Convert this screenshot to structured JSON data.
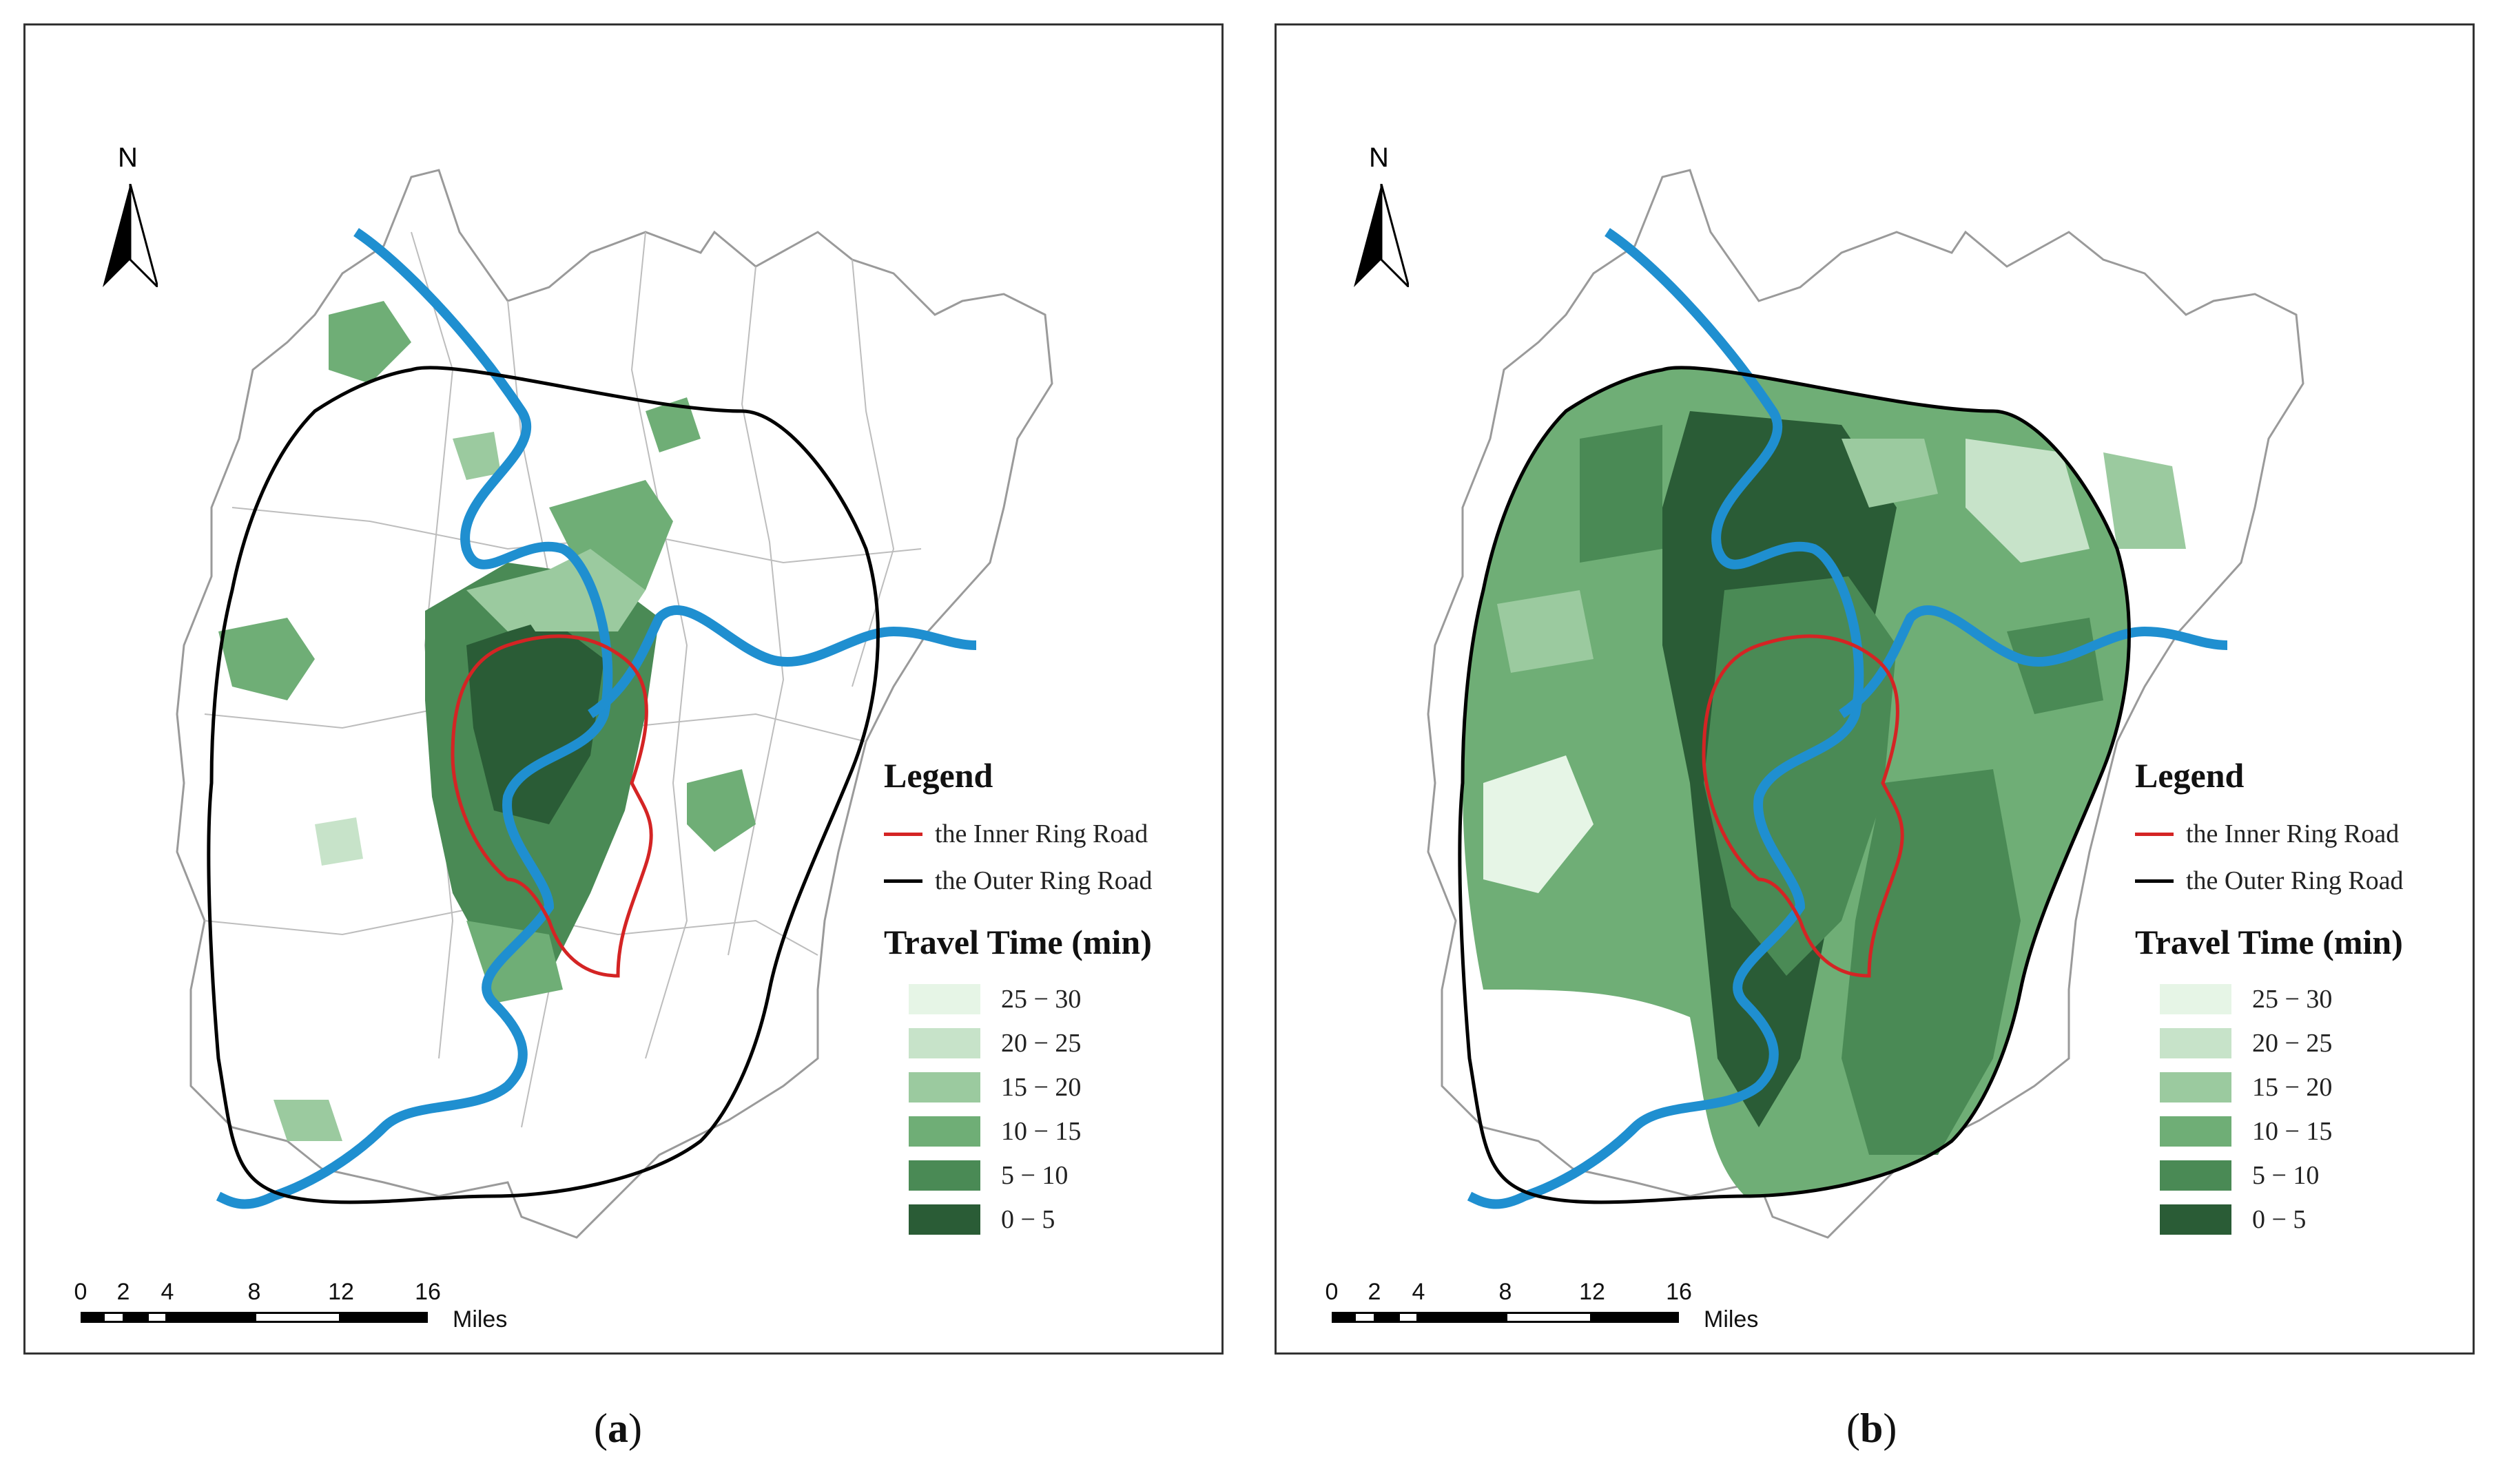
{
  "panels": [
    {
      "id": "a",
      "caption_letter": "a",
      "north_label": "N",
      "legend": {
        "title": "Legend",
        "lines": [
          {
            "label": "the Inner Ring Road",
            "color": "#d42424"
          },
          {
            "label": "the Outer Ring Road",
            "color": "#000000"
          }
        ],
        "classes_title": "Travel Time (min)",
        "classes": [
          {
            "label": "25 − 30",
            "color": "#e6f5e6"
          },
          {
            "label": "20 − 25",
            "color": "#c7e3c9"
          },
          {
            "label": "15 − 20",
            "color": "#9bca9f"
          },
          {
            "label": "10 − 15",
            "color": "#6fae76"
          },
          {
            "label": "5 − 10",
            "color": "#4a8a55"
          },
          {
            "label": "0 − 5",
            "color": "#2a5c36"
          }
        ]
      },
      "scale": {
        "ticks": [
          "0",
          "2",
          "4",
          "8",
          "12",
          "16"
        ],
        "unit": "Miles"
      }
    },
    {
      "id": "b",
      "caption_letter": "b",
      "north_label": "N",
      "legend": {
        "title": "Legend",
        "lines": [
          {
            "label": "the Inner Ring Road",
            "color": "#d42424"
          },
          {
            "label": "the Outer Ring Road",
            "color": "#000000"
          }
        ],
        "classes_title": "Travel Time (min)",
        "classes": [
          {
            "label": "25 − 30",
            "color": "#e6f5e6"
          },
          {
            "label": "20 − 25",
            "color": "#c7e3c9"
          },
          {
            "label": "15 − 20",
            "color": "#9bca9f"
          },
          {
            "label": "10 − 15",
            "color": "#6fae76"
          },
          {
            "label": "5 − 10",
            "color": "#4a8a55"
          },
          {
            "label": "0 − 5",
            "color": "#2a5c36"
          }
        ]
      },
      "scale": {
        "ticks": [
          "0",
          "2",
          "4",
          "8",
          "12",
          "16"
        ],
        "unit": "Miles"
      }
    }
  ],
  "colors": {
    "river": "#1f8fd0",
    "boundary": "#9a9a9a",
    "inner_ring": "#d42424",
    "outer_ring": "#000000"
  }
}
